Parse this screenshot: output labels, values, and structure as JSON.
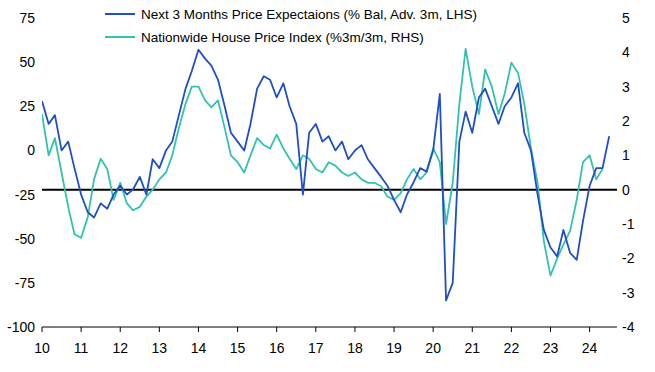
{
  "chart_data": {
    "type": "line",
    "x": [
      10,
      10.17,
      10.33,
      10.5,
      10.67,
      10.83,
      11,
      11.17,
      11.33,
      11.5,
      11.67,
      11.83,
      12,
      12.17,
      12.33,
      12.5,
      12.67,
      12.83,
      13,
      13.17,
      13.33,
      13.5,
      13.67,
      13.83,
      14,
      14.17,
      14.33,
      14.5,
      14.67,
      14.83,
      15,
      15.17,
      15.33,
      15.5,
      15.67,
      15.83,
      16,
      16.17,
      16.33,
      16.5,
      16.67,
      16.83,
      17,
      17.17,
      17.33,
      17.5,
      17.67,
      17.83,
      18,
      18.17,
      18.33,
      18.5,
      18.67,
      18.83,
      19,
      19.17,
      19.33,
      19.5,
      19.67,
      19.83,
      20,
      20.17,
      20.33,
      20.5,
      20.67,
      20.83,
      21,
      21.17,
      21.33,
      21.5,
      21.67,
      21.83,
      22,
      22.17,
      22.33,
      22.5,
      22.67,
      22.83,
      23,
      23.17,
      23.33,
      23.5,
      23.67,
      23.83,
      24,
      24.17,
      24.33,
      24.5
    ],
    "series": [
      {
        "name": "Next 3 Months Price Expectaions (% Bal, Adv. 3m, LHS)",
        "color": "#1f4fc4",
        "values": [
          28,
          15,
          20,
          0,
          5,
          -10,
          -25,
          -35,
          -38,
          -30,
          -33,
          -25,
          -20,
          -25,
          -22,
          -15,
          -25,
          -5,
          -10,
          0,
          5,
          20,
          35,
          45,
          57,
          52,
          48,
          40,
          25,
          10,
          5,
          0,
          15,
          35,
          42,
          40,
          30,
          38,
          25,
          15,
          -25,
          10,
          15,
          5,
          8,
          0,
          5,
          -5,
          0,
          3,
          -5,
          -10,
          -15,
          -20,
          -28,
          -35,
          -25,
          -18,
          -10,
          -12,
          0,
          32,
          -85,
          -75,
          5,
          22,
          10,
          30,
          35,
          25,
          15,
          25,
          30,
          38,
          10,
          0,
          -25,
          -45,
          -55,
          -60,
          -45,
          -58,
          -62,
          -40,
          -20,
          -10,
          -10,
          8
        ]
      },
      {
        "name": "Nationwide House Price Index (%3m/3m, RHS)",
        "color": "#33c2ad",
        "axis": "y2",
        "values": [
          2.2,
          1.0,
          1.5,
          0.5,
          -0.5,
          -1.3,
          -1.4,
          -0.8,
          0.3,
          0.9,
          0.6,
          -0.3,
          0.2,
          -0.4,
          -0.6,
          -0.5,
          -0.2,
          0.0,
          0.3,
          0.5,
          1.0,
          1.8,
          2.5,
          3.0,
          3.0,
          2.6,
          2.4,
          2.6,
          1.8,
          1.0,
          0.8,
          0.5,
          1.0,
          1.5,
          1.3,
          1.2,
          1.6,
          1.2,
          0.9,
          0.6,
          1.0,
          0.9,
          0.6,
          0.5,
          0.8,
          0.7,
          0.5,
          0.4,
          0.5,
          0.3,
          0.2,
          0.2,
          0.1,
          -0.2,
          -0.3,
          -0.1,
          0.3,
          0.6,
          0.3,
          0.5,
          1.2,
          0.8,
          -1.0,
          0.2,
          2.5,
          4.1,
          3.0,
          2.2,
          3.5,
          3.0,
          2.2,
          2.8,
          3.7,
          3.4,
          2.5,
          1.2,
          0.2,
          -1.5,
          -2.5,
          -2.0,
          -1.6,
          -1.2,
          -0.3,
          0.8,
          1.0,
          0.3,
          0.6,
          null
        ]
      }
    ],
    "xlim": [
      10,
      24.7
    ],
    "xticks": [
      10,
      11,
      12,
      13,
      14,
      15,
      16,
      17,
      18,
      19,
      20,
      21,
      22,
      23,
      24
    ],
    "ylim": [
      -100,
      75
    ],
    "yticks": [
      -100,
      -75,
      -50,
      -25,
      0,
      25,
      50,
      75
    ],
    "y2lim": [
      -4,
      5
    ],
    "y2ticks": [
      -4,
      -3,
      -2,
      -1,
      0,
      1,
      2,
      3,
      4,
      5
    ],
    "grid": false,
    "legend": "upper left"
  }
}
